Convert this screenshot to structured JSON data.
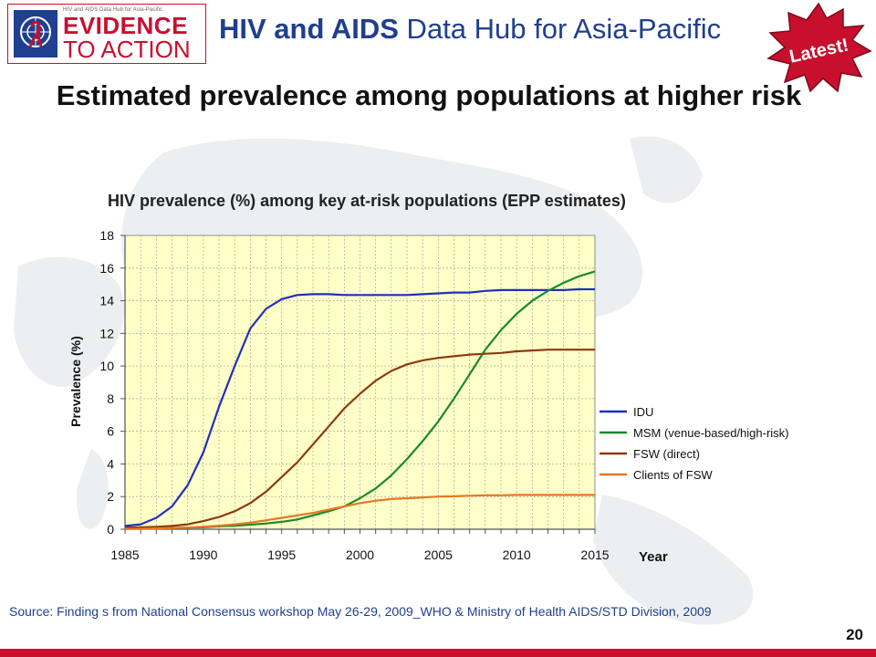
{
  "header": {
    "logo_small_text": "HIV and AIDS Data Hub for Asia-Pacific",
    "logo_line1": "EVIDENCE",
    "logo_line2": "TO ACTION",
    "title_bold": "HIV and AIDS",
    "title_rest": " Data Hub for Asia-Pacific",
    "badge_text": "Latest!"
  },
  "slide_title": "Estimated prevalence among populations at higher risk",
  "source_text": "Source: Finding s from National Consensus workshop May 26-29, 2009_WHO & Ministry of Health AIDS/STD Division, 2009",
  "page_number": "20",
  "colors": {
    "brand_red": "#c8102e",
    "title_blue": "#1f3f8f",
    "plot_bg": "#ffffc8"
  },
  "chart_data": {
    "type": "line",
    "title": "HIV prevalence (%) among key at-risk populations (EPP estimates)",
    "xlabel": "Year",
    "ylabel": "Prevalence (%)",
    "xlim": [
      1985,
      2015
    ],
    "ylim": [
      0,
      18
    ],
    "xticks": [
      1985,
      1990,
      1995,
      2000,
      2005,
      2010,
      2015
    ],
    "yticks": [
      0,
      2,
      4,
      6,
      8,
      10,
      12,
      14,
      16,
      18
    ],
    "grid": true,
    "legend_position": "right",
    "x": [
      1985,
      1986,
      1987,
      1988,
      1989,
      1990,
      1991,
      1992,
      1993,
      1994,
      1995,
      1996,
      1997,
      1998,
      1999,
      2000,
      2001,
      2002,
      2003,
      2004,
      2005,
      2006,
      2007,
      2008,
      2009,
      2010,
      2011,
      2012,
      2013,
      2014,
      2015
    ],
    "series": [
      {
        "name": "IDU",
        "color": "#1f2fbf",
        "values": [
          0.2,
          0.3,
          0.7,
          1.4,
          2.7,
          4.7,
          7.5,
          10.0,
          12.3,
          13.5,
          14.1,
          14.35,
          14.4,
          14.4,
          14.35,
          14.35,
          14.35,
          14.35,
          14.35,
          14.4,
          14.45,
          14.5,
          14.5,
          14.6,
          14.65,
          14.65,
          14.65,
          14.65,
          14.65,
          14.7,
          14.7
        ]
      },
      {
        "name": "MSM (venue-based/high-risk)",
        "color": "#1a8a2a",
        "values": [
          0.05,
          0.05,
          0.05,
          0.08,
          0.1,
          0.12,
          0.18,
          0.22,
          0.28,
          0.35,
          0.45,
          0.6,
          0.85,
          1.1,
          1.4,
          1.9,
          2.5,
          3.3,
          4.3,
          5.4,
          6.6,
          8.0,
          9.5,
          11.0,
          12.2,
          13.2,
          14.0,
          14.6,
          15.1,
          15.5,
          15.8
        ]
      },
      {
        "name": "FSW (direct)",
        "color": "#8b3a0f",
        "values": [
          0.1,
          0.12,
          0.15,
          0.2,
          0.3,
          0.5,
          0.75,
          1.1,
          1.6,
          2.3,
          3.2,
          4.1,
          5.2,
          6.3,
          7.4,
          8.3,
          9.1,
          9.7,
          10.1,
          10.35,
          10.5,
          10.6,
          10.7,
          10.75,
          10.8,
          10.9,
          10.95,
          11.0,
          11.0,
          11.0,
          11.0
        ]
      },
      {
        "name": "Clients of FSW",
        "color": "#e87722",
        "values": [
          0.02,
          0.03,
          0.05,
          0.07,
          0.1,
          0.15,
          0.22,
          0.3,
          0.4,
          0.55,
          0.7,
          0.85,
          1.0,
          1.2,
          1.4,
          1.6,
          1.75,
          1.85,
          1.9,
          1.95,
          2.0,
          2.02,
          2.05,
          2.08,
          2.08,
          2.1,
          2.1,
          2.1,
          2.1,
          2.1,
          2.1
        ]
      }
    ]
  }
}
